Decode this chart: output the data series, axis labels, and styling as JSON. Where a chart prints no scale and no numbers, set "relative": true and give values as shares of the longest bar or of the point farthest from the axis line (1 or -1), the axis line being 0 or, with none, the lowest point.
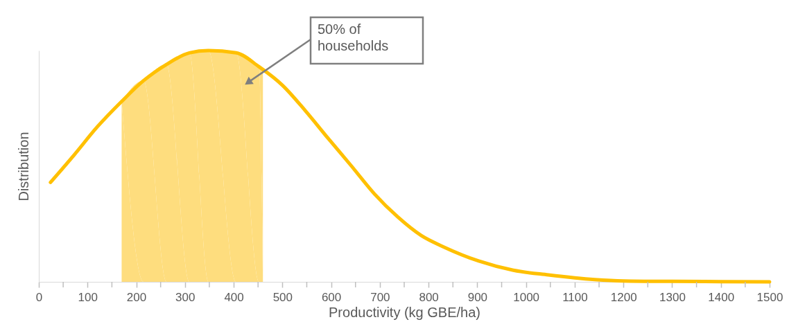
{
  "chart_data": {
    "type": "line",
    "xlabel": "Productivity (kg GBE/ha)",
    "ylabel": "Distribution",
    "relative": true,
    "xlim": [
      0,
      1500
    ],
    "xticks": [
      0,
      {
        "value": 50,
        "label": null
      },
      100,
      {
        "value": 150,
        "label": null
      },
      200,
      {
        "value": 250,
        "label": null
      },
      300,
      {
        "value": 350,
        "label": null
      },
      400,
      {
        "value": 450,
        "label": null
      },
      500,
      {
        "value": 550,
        "label": null
      },
      600,
      {
        "value": 650,
        "label": null
      },
      700,
      {
        "value": 750,
        "label": null
      },
      800,
      {
        "value": 850,
        "label": null
      },
      900,
      {
        "value": 950,
        "label": null
      },
      1000,
      {
        "value": 1050,
        "label": null
      },
      1100,
      {
        "value": 1150,
        "label": null
      },
      1200,
      {
        "value": 1250,
        "label": null
      },
      1300,
      {
        "value": 1350,
        "label": null
      },
      1400,
      {
        "value": 1450,
        "label": null
      },
      1500
    ],
    "line_style": "solid",
    "series": [
      {
        "type": "area",
        "color": "#fedd7e",
        "x": [
          170,
          215,
          262,
          309,
          348,
          405,
          452,
          460
        ],
        "values": [
          0.78,
          0.87,
          0.94,
          0.99,
          1,
          0.99,
          0.93,
          0.92
        ]
      },
      {
        "color": "#ffc000",
        "x": [
          24,
          73,
          120,
          170,
          215,
          262,
          309,
          348,
          405,
          452,
          500,
          547,
          594,
          642,
          689,
          737,
          785,
          832,
          903,
          974,
          1046,
          1141,
          1200,
          1300,
          1400,
          1500
        ],
        "values": [
          0.43,
          0.55,
          0.67,
          0.78,
          0.87,
          0.94,
          0.99,
          1,
          0.99,
          0.93,
          0.85,
          0.74,
          0.62,
          0.5,
          0.38,
          0.28,
          0.2,
          0.15,
          0.09,
          0.05,
          0.03,
          0.01,
          0.004,
          0.002,
          0.001,
          0
        ]
      }
    ],
    "annotations": [
      "50% of households"
    ]
  }
}
